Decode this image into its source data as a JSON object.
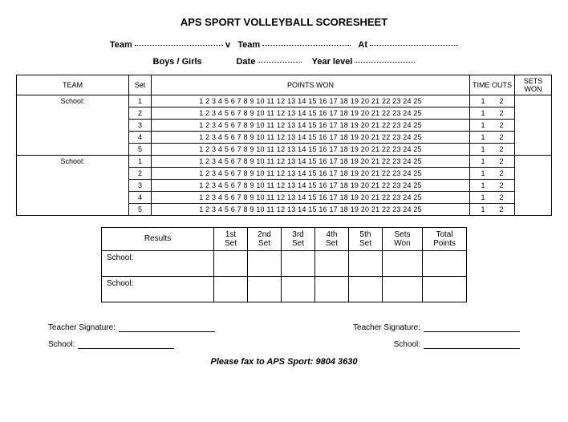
{
  "title": "APS SPORT VOLLEYBALL SCORESHEET",
  "meta": {
    "team_l": "Team",
    "vs": "v",
    "team_r": "Team",
    "at": "At",
    "boysgirls": "Boys / Girls",
    "date": "Date",
    "yearlevel": "Year level"
  },
  "main": {
    "headers": {
      "team": "TEAM",
      "set": "Set",
      "points": "POINTS WON",
      "timeouts": "TIME OUTS",
      "setswon": "SETS WON"
    },
    "school_label": "School:",
    "sets": [
      "1",
      "2",
      "3",
      "4",
      "5"
    ],
    "points_seq": "1 2 3 4 5 6 7 8 9 10 11 12 13 14 15 16 17 18 19 20 21 22 23 24 25",
    "timeouts_seq": "1  2"
  },
  "results": {
    "headers": {
      "results": "Results",
      "s1a": "1st",
      "s1b": "Set",
      "s2a": "2nd",
      "s2b": "Set",
      "s3a": "3rd",
      "s3b": "Set",
      "s4a": "4th",
      "s4b": "Set",
      "s5a": "5th",
      "s5b": "Set",
      "swa": "Sets",
      "swb": "Won",
      "tpa": "Total",
      "tpb": "Points"
    },
    "school_label": "School:"
  },
  "sig": {
    "teacher": "Teacher Signature:",
    "school": "School:"
  },
  "footer": "Please fax to APS Sport: 9804 3630"
}
